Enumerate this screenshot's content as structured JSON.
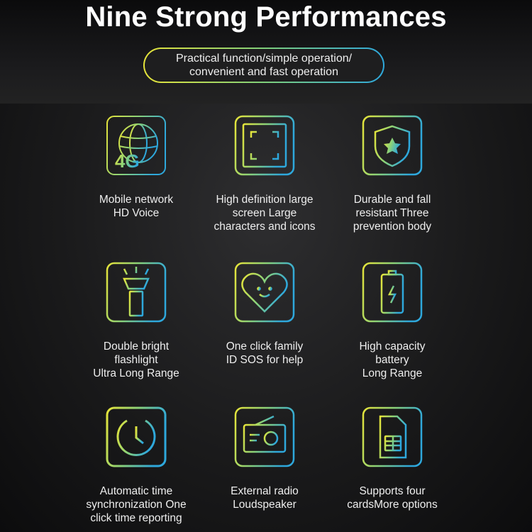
{
  "header": {
    "title": "Nine Strong Performances",
    "subtitle_line1": "Practical function/simple operation/",
    "subtitle_line2": "convenient and fast operation"
  },
  "colors": {
    "gradient_start": "#e6e43a",
    "gradient_end": "#2ea8dc",
    "background": "#1a1a1b"
  },
  "features": [
    {
      "icon": "globe-4g-icon",
      "icon_text": "4G",
      "lines": [
        "Mobile network",
        "HD Voice"
      ]
    },
    {
      "icon": "fullscreen-icon",
      "lines": [
        "High definition large",
        "screen Large",
        "characters and icons"
      ]
    },
    {
      "icon": "shield-star-icon",
      "lines": [
        "Durable and fall",
        "resistant Three",
        "prevention body"
      ]
    },
    {
      "icon": "flashlight-icon",
      "lines": [
        "Double bright",
        "flashlight",
        "Ultra Long Range"
      ]
    },
    {
      "icon": "heart-smile-icon",
      "lines": [
        "One click family",
        "ID SOS for help"
      ]
    },
    {
      "icon": "battery-icon",
      "lines": [
        "High capacity",
        "battery",
        "Long Range"
      ]
    },
    {
      "icon": "clock-icon",
      "lines": [
        "Automatic time",
        "synchronization One",
        "click time reporting"
      ]
    },
    {
      "icon": "radio-icon",
      "lines": [
        "External radio",
        "Loudspeaker"
      ]
    },
    {
      "icon": "sim-card-icon",
      "lines": [
        "Supports four",
        "cardsMore options"
      ]
    }
  ]
}
